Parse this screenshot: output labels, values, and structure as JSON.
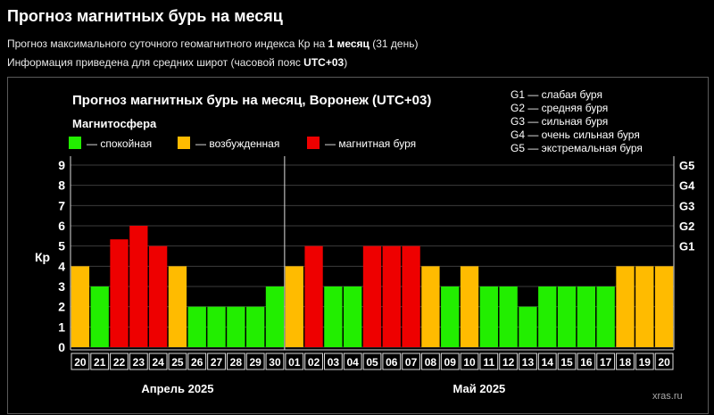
{
  "header": {
    "title": "Прогноз магнитных бурь на месяц",
    "subtitle1_prefix": "Прогноз максимального суточного геомагнитного индекса Кр на ",
    "subtitle1_bold": "1 месяц",
    "subtitle1_suffix": " (31 день)",
    "subtitle2_prefix": "Информация приведена для средних широт (часовой пояс ",
    "subtitle2_bold": "UTC+03",
    "subtitle2_suffix": ")"
  },
  "colors": {
    "calm": "#22ee00",
    "excited": "#ffbb00",
    "storm": "#ee0000",
    "background": "#000000"
  },
  "chart_data": {
    "type": "bar",
    "title": "Прогноз магнитных бурь на месяц, Воронеж (UTC+03)",
    "legend_title": "Магнитосфера",
    "legend": [
      {
        "key": "calm",
        "label": "— спокойная"
      },
      {
        "key": "excited",
        "label": "— возбужденная"
      },
      {
        "key": "storm",
        "label": "— магнитная буря"
      }
    ],
    "storm_scale_legend": [
      "G1 — слабая буря",
      "G2 — средняя буря",
      "G3 — сильная буря",
      "G4 — очень сильная буря",
      "G5 — экстремальная буря"
    ],
    "ylabel": "Кр",
    "ylim": [
      0,
      9
    ],
    "y_ticks": [
      0,
      1,
      2,
      3,
      4,
      5,
      6,
      7,
      8,
      9
    ],
    "right_ticks": [
      {
        "label": "G1",
        "value": 5
      },
      {
        "label": "G2",
        "value": 6
      },
      {
        "label": "G3",
        "value": 7
      },
      {
        "label": "G4",
        "value": 8
      },
      {
        "label": "G5",
        "value": 9
      }
    ],
    "grid": true,
    "categories": [
      "20",
      "21",
      "22",
      "23",
      "24",
      "25",
      "26",
      "27",
      "28",
      "29",
      "30",
      "01",
      "02",
      "03",
      "04",
      "05",
      "06",
      "07",
      "08",
      "09",
      "10",
      "11",
      "12",
      "13",
      "14",
      "15",
      "16",
      "17",
      "18",
      "19",
      "20"
    ],
    "values": [
      4,
      3,
      5.33,
      6,
      5,
      4,
      2,
      2,
      2,
      2,
      3,
      4,
      5,
      3,
      3,
      5,
      5,
      5,
      4,
      3,
      4,
      3,
      3,
      2,
      3,
      3,
      3,
      3,
      4,
      4,
      4
    ],
    "levels": [
      "excited",
      "calm",
      "storm",
      "storm",
      "storm",
      "excited",
      "calm",
      "calm",
      "calm",
      "calm",
      "calm",
      "excited",
      "storm",
      "calm",
      "calm",
      "storm",
      "storm",
      "storm",
      "excited",
      "calm",
      "excited",
      "calm",
      "calm",
      "calm",
      "calm",
      "calm",
      "calm",
      "calm",
      "excited",
      "excited",
      "excited"
    ],
    "month_groups": [
      {
        "label": "Апрель 2025",
        "start": 0,
        "end": 10
      },
      {
        "label": "Май 2025",
        "start": 11,
        "end": 30
      }
    ],
    "watermark": "xras.ru"
  }
}
